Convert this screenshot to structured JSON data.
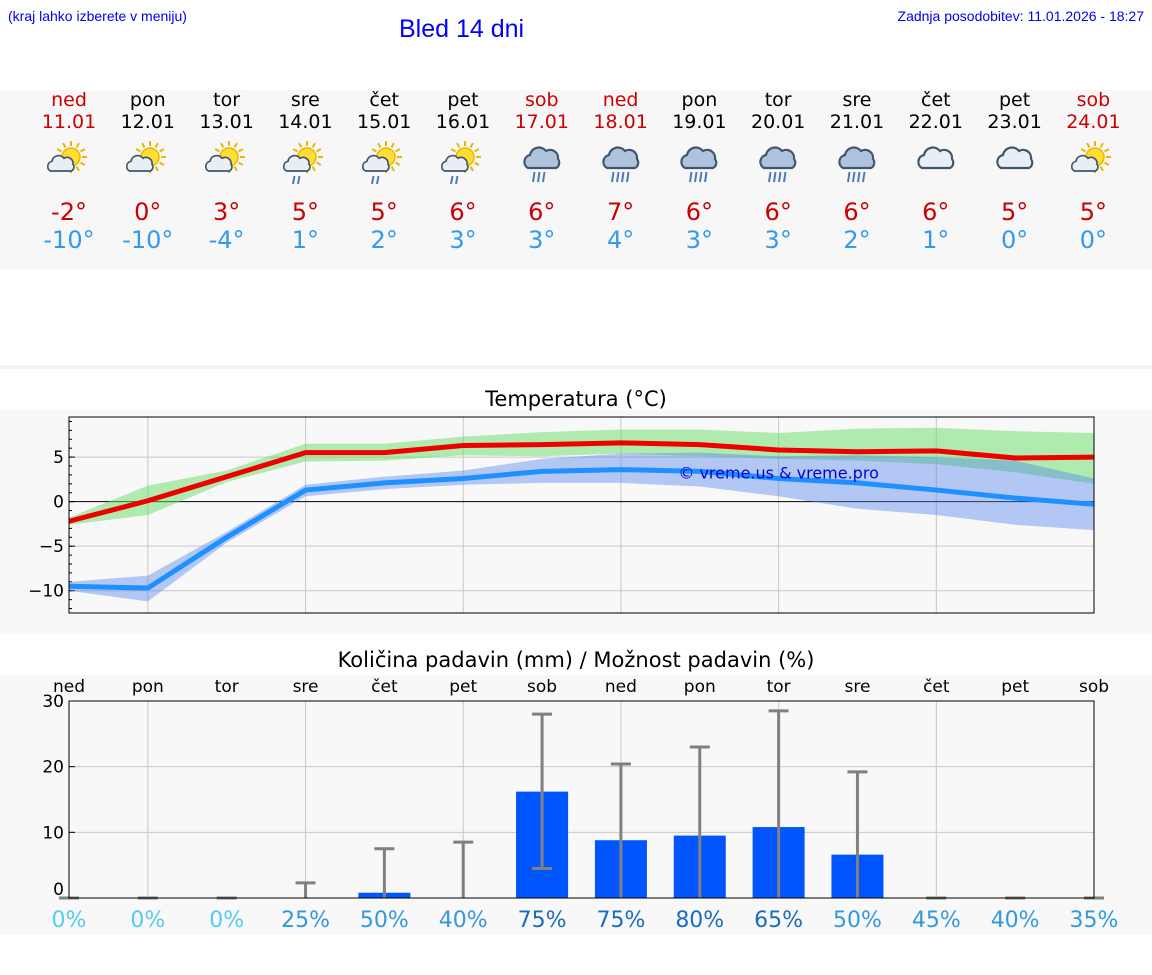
{
  "header": {
    "hint": "(kraj lahko izberete v meniju)",
    "title": "Bled 14 dni",
    "updated": "Zadnja posodobitev: 11.01.2026 - 18:27"
  },
  "colors": {
    "weekday": "#000000",
    "weekend": "#cc0000",
    "tmax": "#ee0000",
    "tmin": "#1e90ff",
    "bar": "#0055ff",
    "errorbar": "#808080"
  },
  "days": [
    {
      "name": "ned",
      "date": "11.01",
      "weekend": true,
      "icon": "sun-cloud-icon",
      "tmax": "-2°",
      "tmin": "-10°"
    },
    {
      "name": "pon",
      "date": "12.01",
      "weekend": false,
      "icon": "sun-cloud-icon",
      "tmax": "0°",
      "tmin": "-10°"
    },
    {
      "name": "tor",
      "date": "13.01",
      "weekend": false,
      "icon": "sun-cloud-icon",
      "tmax": "3°",
      "tmin": "-4°"
    },
    {
      "name": "sre",
      "date": "14.01",
      "weekend": false,
      "icon": "sun-cloud-light-rain-icon",
      "tmax": "5°",
      "tmin": "1°"
    },
    {
      "name": "čet",
      "date": "15.01",
      "weekend": false,
      "icon": "sun-cloud-light-rain-icon",
      "tmax": "5°",
      "tmin": "2°"
    },
    {
      "name": "pet",
      "date": "16.01",
      "weekend": false,
      "icon": "sun-cloud-light-rain-icon",
      "tmax": "6°",
      "tmin": "3°"
    },
    {
      "name": "sob",
      "date": "17.01",
      "weekend": true,
      "icon": "cloud-rain-icon",
      "tmax": "6°",
      "tmin": "3°"
    },
    {
      "name": "ned",
      "date": "18.01",
      "weekend": true,
      "icon": "cloud-heavy-rain-icon",
      "tmax": "7°",
      "tmin": "4°"
    },
    {
      "name": "pon",
      "date": "19.01",
      "weekend": false,
      "icon": "cloud-heavy-rain-icon",
      "tmax": "6°",
      "tmin": "3°"
    },
    {
      "name": "tor",
      "date": "20.01",
      "weekend": false,
      "icon": "cloud-heavy-rain-icon",
      "tmax": "6°",
      "tmin": "3°"
    },
    {
      "name": "sre",
      "date": "21.01",
      "weekend": false,
      "icon": "cloud-heavy-rain-icon",
      "tmax": "6°",
      "tmin": "2°"
    },
    {
      "name": "čet",
      "date": "22.01",
      "weekend": false,
      "icon": "cloud-icon",
      "tmax": "6°",
      "tmin": "1°"
    },
    {
      "name": "pet",
      "date": "23.01",
      "weekend": false,
      "icon": "cloud-icon",
      "tmax": "5°",
      "tmin": "0°"
    },
    {
      "name": "sob",
      "date": "24.01",
      "weekend": true,
      "icon": "sun-cloud-icon",
      "tmax": "5°",
      "tmin": "0°"
    }
  ],
  "chart_data": [
    {
      "type": "line",
      "title": "Temperatura (°C)",
      "watermark": "© vreme.us & vreme.pro",
      "x": [
        0,
        1,
        2,
        3,
        4,
        5,
        6,
        7,
        8,
        9,
        10,
        11,
        12,
        13
      ],
      "ylim": [
        -12.5,
        9.5
      ],
      "yticks": [
        5,
        0,
        -5,
        -10
      ],
      "ytick_labels": [
        "5",
        "0",
        "−5",
        "−10"
      ],
      "series": [
        {
          "name": "max",
          "values": [
            -2.2,
            0.1,
            2.8,
            5.5,
            5.5,
            6.3,
            6.4,
            6.6,
            6.4,
            5.8,
            5.6,
            5.7,
            4.9,
            5.0
          ],
          "band_low": [
            -2.6,
            -1.5,
            2.2,
            4.5,
            4.6,
            5.2,
            5.1,
            5.4,
            5.1,
            4.8,
            4.6,
            4.2,
            3.3,
            2.0
          ],
          "band_high": [
            -1.8,
            1.8,
            3.5,
            6.5,
            6.5,
            7.3,
            7.8,
            8.1,
            8.1,
            7.7,
            8.2,
            8.3,
            7.9,
            7.7
          ]
        },
        {
          "name": "min",
          "values": [
            -9.5,
            -9.7,
            -4.0,
            1.3,
            2.1,
            2.6,
            3.4,
            3.6,
            3.4,
            2.6,
            2.1,
            1.3,
            0.4,
            -0.3
          ],
          "band_low": [
            -10.0,
            -11.2,
            -4.6,
            0.6,
            1.4,
            1.9,
            2.1,
            2.1,
            1.7,
            0.6,
            -0.8,
            -1.5,
            -2.6,
            -3.2
          ],
          "band_high": [
            -9.0,
            -8.3,
            -3.4,
            1.9,
            2.8,
            3.5,
            4.8,
            5.4,
            5.5,
            5.1,
            5.2,
            5.0,
            4.6,
            2.6
          ]
        }
      ]
    },
    {
      "type": "bar",
      "title": "Količina padavin (mm) / Možnost padavin (%)",
      "categories": [
        "ned",
        "pon",
        "tor",
        "sre",
        "čet",
        "pet",
        "sob",
        "ned",
        "pon",
        "tor",
        "sre",
        "čet",
        "pet",
        "sob"
      ],
      "values": [
        0,
        0,
        0,
        0,
        0.8,
        0,
        16.2,
        8.8,
        9.5,
        10.8,
        6.6,
        0,
        0,
        0
      ],
      "error_low": [
        0,
        0,
        0,
        0,
        0,
        0,
        4.5,
        0,
        0,
        0,
        0,
        0,
        0,
        0
      ],
      "error_high": [
        0,
        0,
        0,
        2.3,
        7.5,
        8.5,
        28,
        20.4,
        23,
        28.5,
        19.2,
        0,
        0,
        0
      ],
      "ylim": [
        0,
        30
      ],
      "yticks": [
        30,
        20,
        10,
        0
      ],
      "ytick_labels": [
        "30",
        "20",
        "10",
        "0"
      ],
      "probabilities": [
        "0%",
        "0%",
        "0%",
        "25%",
        "50%",
        "40%",
        "75%",
        "75%",
        "80%",
        "65%",
        "50%",
        "45%",
        "40%",
        "35%"
      ],
      "prob_colors": [
        "#55ccee",
        "#55ccee",
        "#55ccee",
        "#3399dd",
        "#3399dd",
        "#3399dd",
        "#1a6cbf",
        "#1a6cbf",
        "#1a6cbf",
        "#1a6cbf",
        "#3399dd",
        "#3399dd",
        "#3399dd",
        "#3399dd"
      ]
    }
  ]
}
